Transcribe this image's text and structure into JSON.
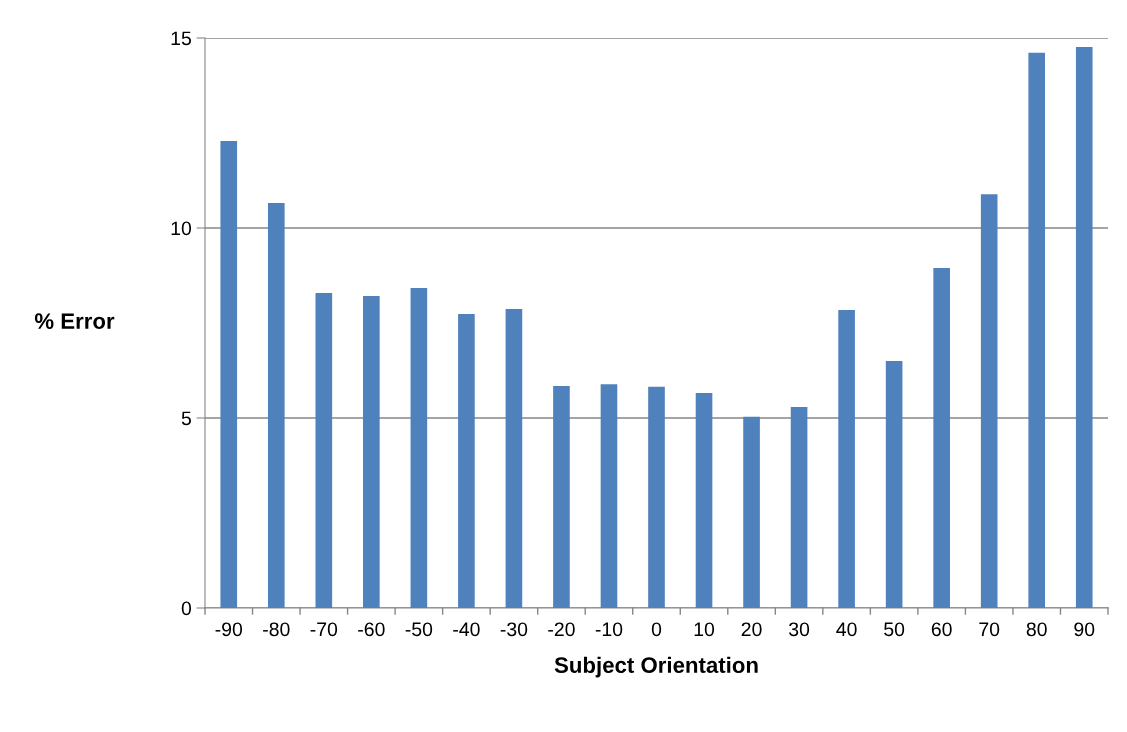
{
  "chart_data": {
    "type": "bar",
    "xlabel": "Subject Orientation",
    "ylabel": "% Error",
    "categories": [
      "-90",
      "-80",
      "-70",
      "-60",
      "-50",
      "-40",
      "-30",
      "-20",
      "-10",
      "0",
      "10",
      "20",
      "30",
      "40",
      "50",
      "60",
      "70",
      "80",
      "90"
    ],
    "values": [
      12.29,
      10.66,
      8.29,
      8.21,
      8.42,
      7.74,
      7.87,
      5.84,
      5.89,
      5.82,
      5.66,
      5.03,
      5.29,
      7.84,
      6.5,
      8.95,
      10.89,
      14.61,
      14.76
    ],
    "color": "#4f81bd",
    "ylim": [
      0,
      15
    ],
    "yticks": [
      0,
      5,
      10,
      15
    ],
    "grid": "y",
    "legend": false
  }
}
